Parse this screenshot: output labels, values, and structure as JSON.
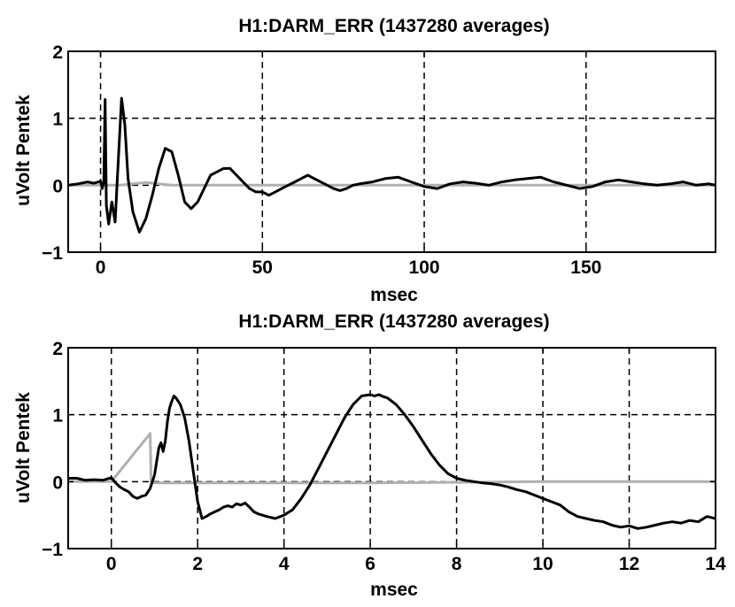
{
  "chart_data": [
    {
      "type": "line",
      "title": "H1:DARM_ERR (1437280 averages)",
      "xlabel": "msec",
      "ylabel": "uVolt Pentek",
      "xlim": [
        -10,
        190
      ],
      "ylim": [
        -1,
        2
      ],
      "xticks": [
        0,
        50,
        100,
        150
      ],
      "xtick_labels": [
        "0",
        "50",
        "100",
        "150"
      ],
      "yticks": [
        -1,
        0,
        1,
        2
      ],
      "ytick_labels": [
        "−1",
        "0",
        "1",
        "2"
      ],
      "grid": true,
      "colors": {
        "main": "#000000",
        "ref": "#b0b0b0"
      },
      "series": [
        {
          "key": "main",
          "x": [
            -10,
            -7,
            -4,
            -2,
            0,
            0.5,
            1,
            1.4,
            1.8,
            2.5,
            3.5,
            4.5,
            5.5,
            6.5,
            7.5,
            8.5,
            10,
            12,
            14,
            16,
            18,
            20,
            22,
            24,
            26,
            28,
            30,
            32,
            34,
            36,
            38,
            40,
            42,
            44,
            46,
            48,
            50,
            52,
            54,
            56,
            58,
            60,
            62,
            64,
            66,
            68,
            70,
            72,
            74,
            76,
            78,
            80,
            84,
            88,
            92,
            96,
            100,
            104,
            108,
            112,
            116,
            120,
            124,
            128,
            132,
            136,
            140,
            144,
            148,
            152,
            156,
            160,
            164,
            168,
            172,
            176,
            180,
            184,
            188,
            190
          ],
          "y": [
            0,
            0.02,
            0.05,
            0.03,
            0.06,
            -0.05,
            0.05,
            1.28,
            -0.3,
            -0.58,
            -0.25,
            -0.55,
            0.4,
            1.3,
            0.9,
            0.1,
            -0.4,
            -0.7,
            -0.5,
            -0.15,
            0.25,
            0.55,
            0.5,
            0.15,
            -0.25,
            -0.35,
            -0.25,
            -0.05,
            0.15,
            0.2,
            0.25,
            0.25,
            0.15,
            0.05,
            -0.05,
            -0.1,
            -0.1,
            -0.15,
            -0.1,
            -0.05,
            0.0,
            0.05,
            0.1,
            0.15,
            0.1,
            0.05,
            0.0,
            -0.05,
            -0.08,
            -0.05,
            0.0,
            0.02,
            0.05,
            0.1,
            0.12,
            0.05,
            -0.02,
            -0.05,
            0.02,
            0.05,
            0.03,
            0.0,
            0.05,
            0.08,
            0.1,
            0.12,
            0.05,
            0.0,
            -0.05,
            -0.02,
            0.05,
            0.08,
            0.05,
            0.02,
            0.0,
            0.02,
            0.05,
            0.0,
            0.02,
            0.0
          ]
        },
        {
          "key": "ref",
          "x": [
            -10,
            0,
            1,
            3,
            6,
            10,
            14,
            18,
            22,
            190
          ],
          "y": [
            0,
            0,
            0,
            0,
            0,
            0.02,
            0.04,
            0.02,
            0,
            0
          ]
        }
      ]
    },
    {
      "type": "line",
      "title": "H1:DARM_ERR (1437280 averages)",
      "xlabel": "msec",
      "ylabel": "uVolt Pentek",
      "xlim": [
        -1,
        14
      ],
      "ylim": [
        -1,
        2
      ],
      "xticks": [
        0,
        2,
        4,
        6,
        8,
        10,
        12,
        14
      ],
      "xtick_labels": [
        "0",
        "2",
        "4",
        "6",
        "8",
        "10",
        "12",
        "14"
      ],
      "yticks": [
        -1,
        0,
        1,
        2
      ],
      "ytick_labels": [
        "−1",
        "0",
        "1",
        "2"
      ],
      "grid": true,
      "colors": {
        "main": "#000000",
        "ref": "#b0b0b0"
      },
      "series": [
        {
          "key": "main",
          "x": [
            -1,
            -0.8,
            -0.6,
            -0.4,
            -0.2,
            0,
            0.1,
            0.2,
            0.3,
            0.4,
            0.5,
            0.6,
            0.7,
            0.8,
            0.9,
            1.0,
            1.05,
            1.1,
            1.15,
            1.2,
            1.25,
            1.3,
            1.35,
            1.4,
            1.45,
            1.5,
            1.6,
            1.7,
            1.8,
            1.9,
            2.0,
            2.1,
            2.2,
            2.3,
            2.4,
            2.5,
            2.6,
            2.7,
            2.8,
            2.9,
            3.0,
            3.1,
            3.2,
            3.3,
            3.4,
            3.5,
            3.6,
            3.8,
            4.0,
            4.2,
            4.4,
            4.6,
            4.8,
            5.0,
            5.2,
            5.4,
            5.6,
            5.8,
            6.0,
            6.1,
            6.2,
            6.3,
            6.4,
            6.5,
            6.6,
            6.8,
            7.0,
            7.2,
            7.4,
            7.6,
            7.8,
            8.0,
            8.2,
            8.4,
            8.6,
            8.8,
            9.0,
            9.2,
            9.4,
            9.6,
            9.8,
            10.0,
            10.2,
            10.4,
            10.6,
            10.8,
            11.0,
            11.2,
            11.4,
            11.6,
            11.8,
            12.0,
            12.2,
            12.4,
            12.6,
            12.8,
            13.0,
            13.2,
            13.4,
            13.6,
            13.8,
            14.0
          ],
          "y": [
            0.05,
            0.05,
            0.02,
            0.03,
            0.02,
            0.06,
            -0.02,
            -0.08,
            -0.12,
            -0.15,
            -0.22,
            -0.25,
            -0.22,
            -0.2,
            -0.1,
            0.1,
            0.3,
            0.5,
            0.58,
            0.45,
            0.6,
            0.9,
            1.1,
            1.2,
            1.28,
            1.25,
            1.15,
            0.95,
            0.6,
            0.15,
            -0.3,
            -0.55,
            -0.52,
            -0.48,
            -0.45,
            -0.42,
            -0.38,
            -0.36,
            -0.38,
            -0.33,
            -0.35,
            -0.32,
            -0.38,
            -0.45,
            -0.48,
            -0.5,
            -0.52,
            -0.55,
            -0.5,
            -0.42,
            -0.25,
            -0.05,
            0.2,
            0.45,
            0.7,
            0.95,
            1.15,
            1.28,
            1.3,
            1.28,
            1.3,
            1.27,
            1.25,
            1.2,
            1.15,
            1.0,
            0.82,
            0.62,
            0.42,
            0.25,
            0.12,
            0.05,
            0.02,
            0.0,
            -0.02,
            -0.03,
            -0.05,
            -0.08,
            -0.12,
            -0.15,
            -0.2,
            -0.25,
            -0.3,
            -0.35,
            -0.45,
            -0.52,
            -0.55,
            -0.58,
            -0.6,
            -0.65,
            -0.68,
            -0.66,
            -0.7,
            -0.68,
            -0.65,
            -0.62,
            -0.6,
            -0.62,
            -0.58,
            -0.6,
            -0.52,
            -0.55
          ]
        },
        {
          "key": "ref",
          "x": [
            -1,
            0,
            0.9,
            0.92,
            1.0,
            2,
            4,
            6,
            8,
            10,
            12,
            14
          ],
          "y": [
            0,
            0,
            0.72,
            0,
            -0.02,
            -0.02,
            -0.02,
            -0.02,
            -0.01,
            0,
            0,
            0
          ]
        }
      ]
    }
  ]
}
